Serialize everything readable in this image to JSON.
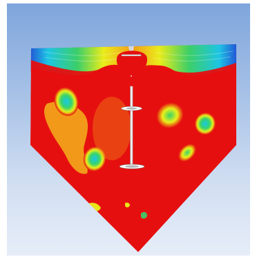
{
  "scene": {
    "description_free": true,
    "colormap": {
      "low": "#1f3fd6",
      "low_mid": "#19c8e8",
      "mid": "#39d36a",
      "high_mid": "#eaf01a",
      "upper": "#f2a11b",
      "high": "#e60f0f"
    },
    "background": {
      "top": "#7ea5dc",
      "bottom": "#e6edf8"
    }
  }
}
